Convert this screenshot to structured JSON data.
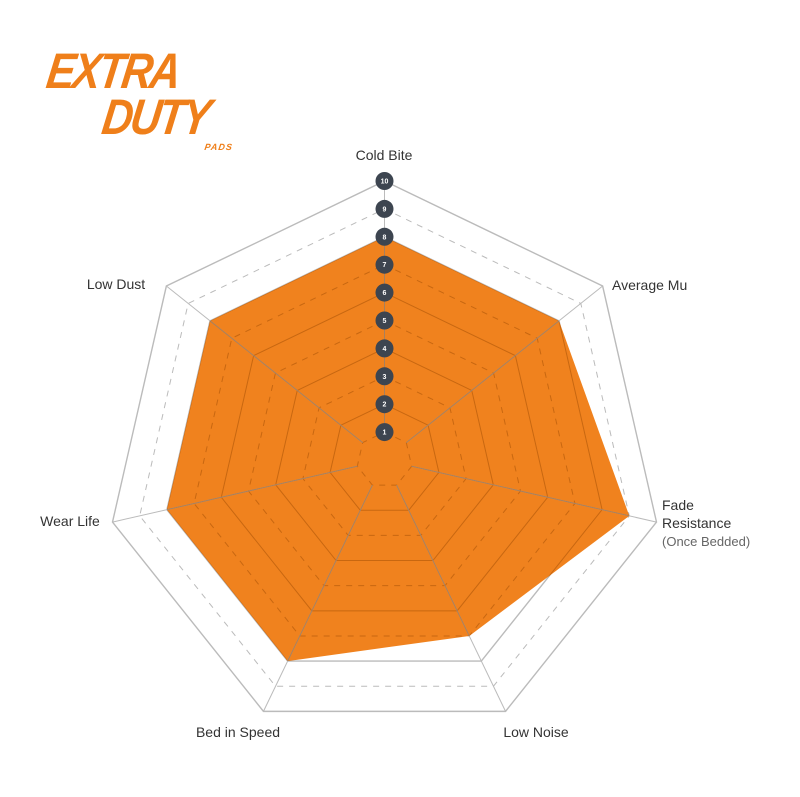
{
  "logo": {
    "line1": "EXTRA",
    "line2": "DUTY",
    "line3": "PADS"
  },
  "chart_data": {
    "type": "radar",
    "axes": [
      "Cold Bite",
      "Average Mu",
      "Fade Resistance",
      "Low Noise",
      "Bed in Speed",
      "Wear Life",
      "Low Dust"
    ],
    "axis_sublabels": {
      "Fade Resistance": "(Once Bedded)"
    },
    "values": [
      8,
      8,
      9,
      7,
      8,
      8,
      8
    ],
    "scale": [
      1,
      10
    ],
    "tick_labels": [
      "1",
      "2",
      "3",
      "4",
      "5",
      "6",
      "7",
      "8",
      "9",
      "10"
    ],
    "fill_color": "#f0821e",
    "grid_color": "#bbbbbb",
    "tick_marker_color": "#3d4550"
  }
}
